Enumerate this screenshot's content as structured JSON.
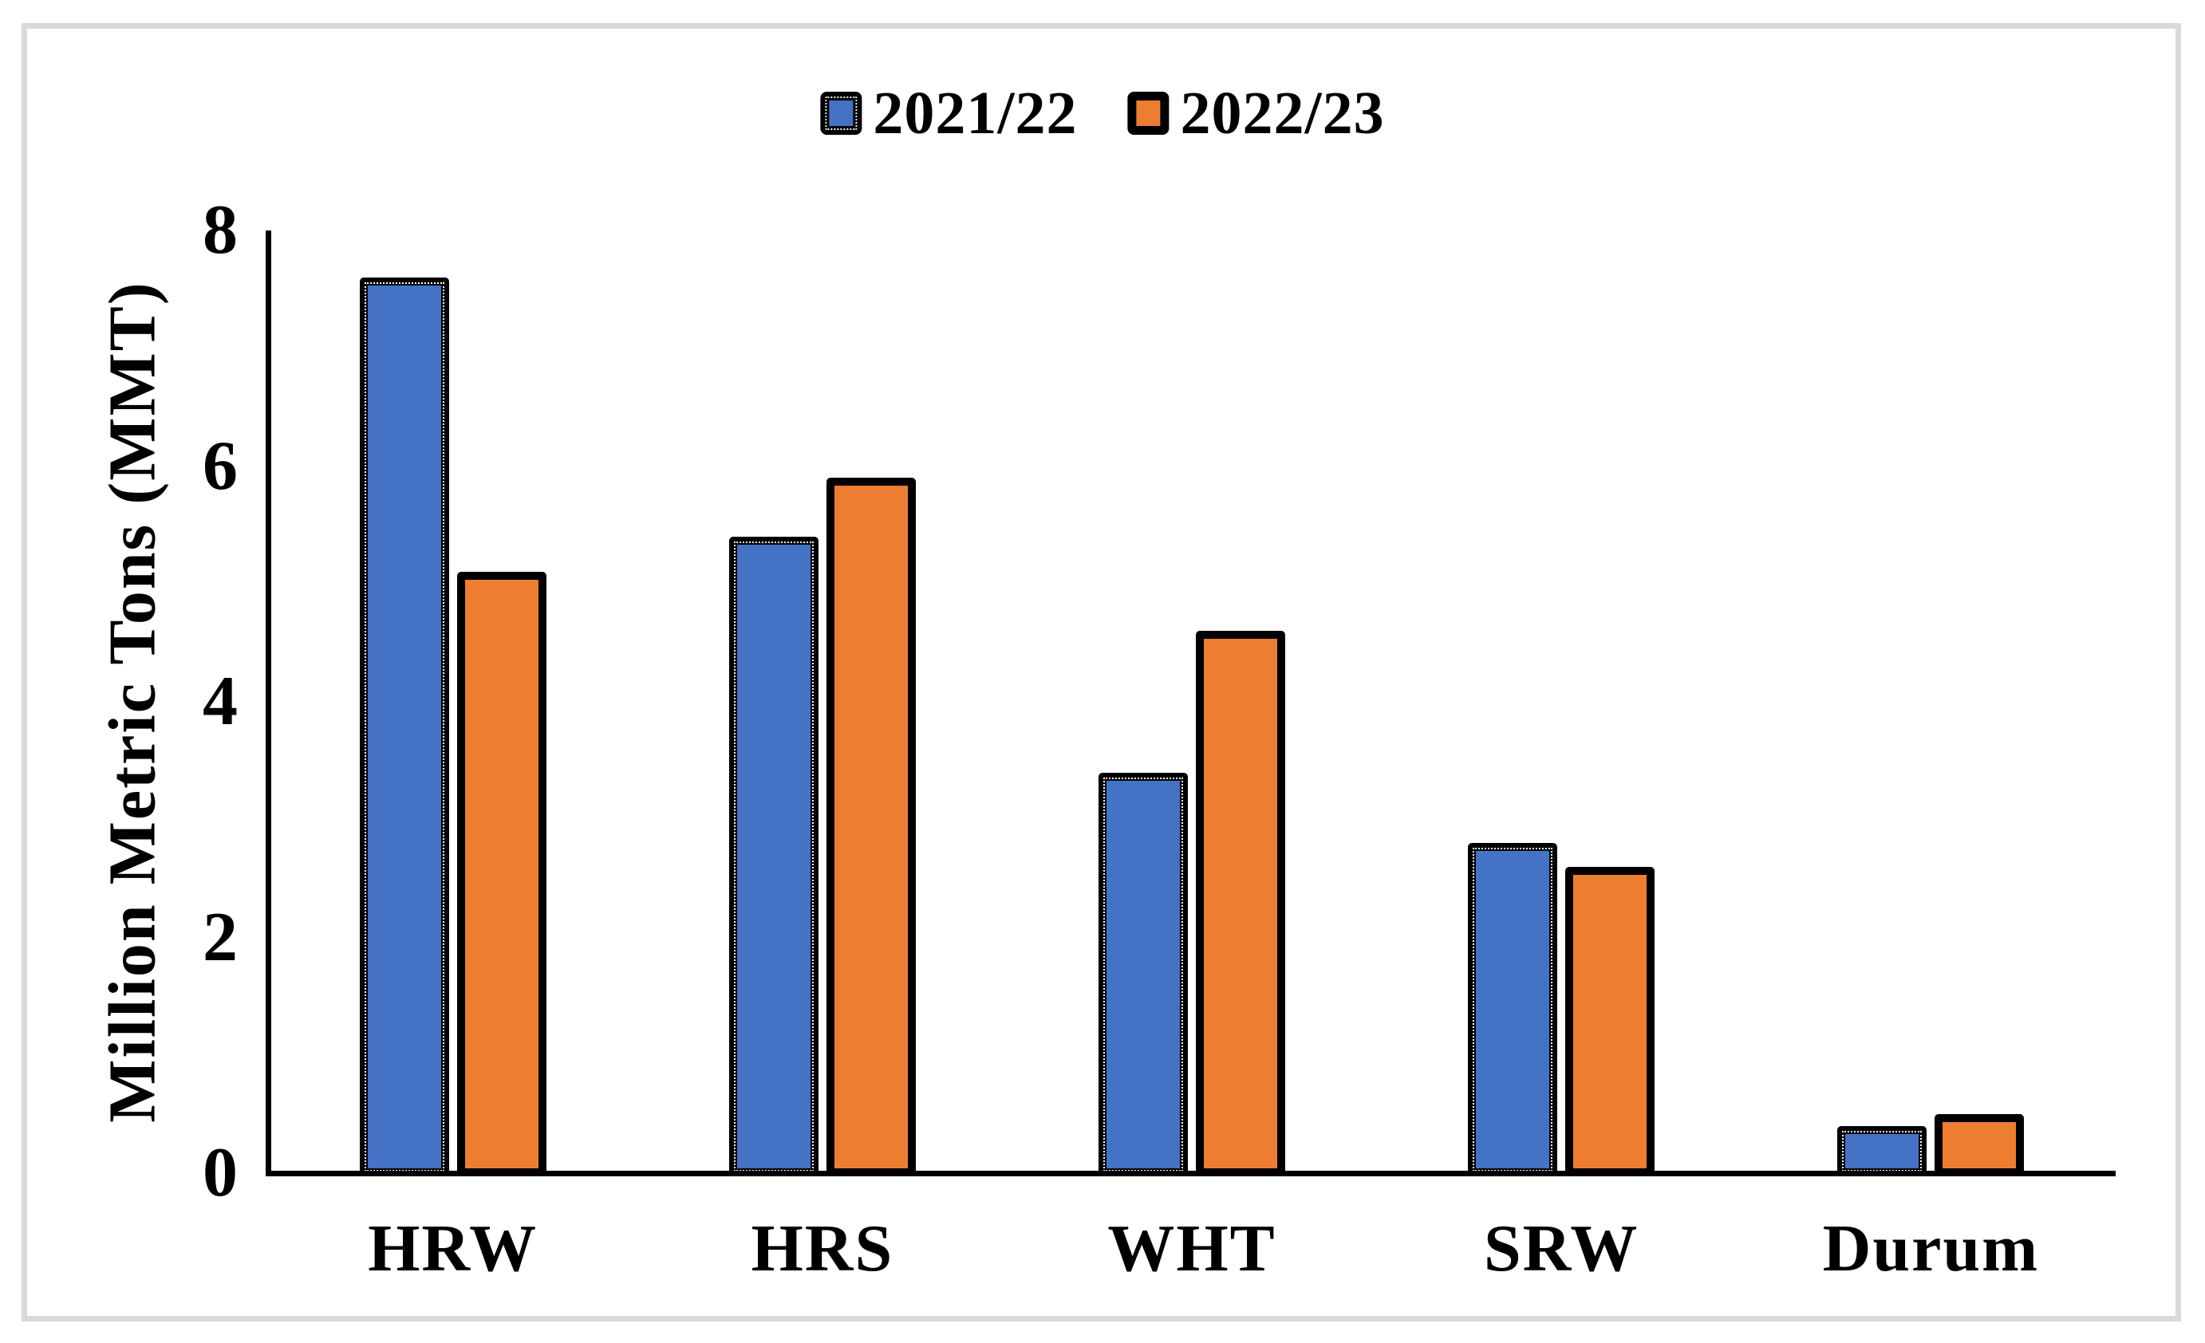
{
  "chart_data": {
    "type": "bar",
    "title": "",
    "categories": [
      "HRW",
      "HRS",
      "WHT",
      "SRW",
      "Durum"
    ],
    "series": [
      {
        "name": "2021/22",
        "color": "#4472C4",
        "values": [
          7.6,
          5.4,
          3.4,
          2.8,
          0.4
        ]
      },
      {
        "name": "2022/23",
        "color": "#ED7D31",
        "values": [
          5.1,
          5.9,
          4.6,
          2.6,
          0.5
        ]
      }
    ],
    "xlabel": "",
    "ylabel": "Million Metric Tons (MMT)",
    "ylim": [
      0,
      8
    ],
    "yticks": [
      0,
      2,
      4,
      6,
      8
    ],
    "grid": false,
    "legend_position": "top-center",
    "colors": {
      "bar_border": "#000000",
      "axis": "#000000",
      "text": "#000000",
      "frame_border": "#D9D9D9",
      "background": "#FFFFFF"
    }
  }
}
